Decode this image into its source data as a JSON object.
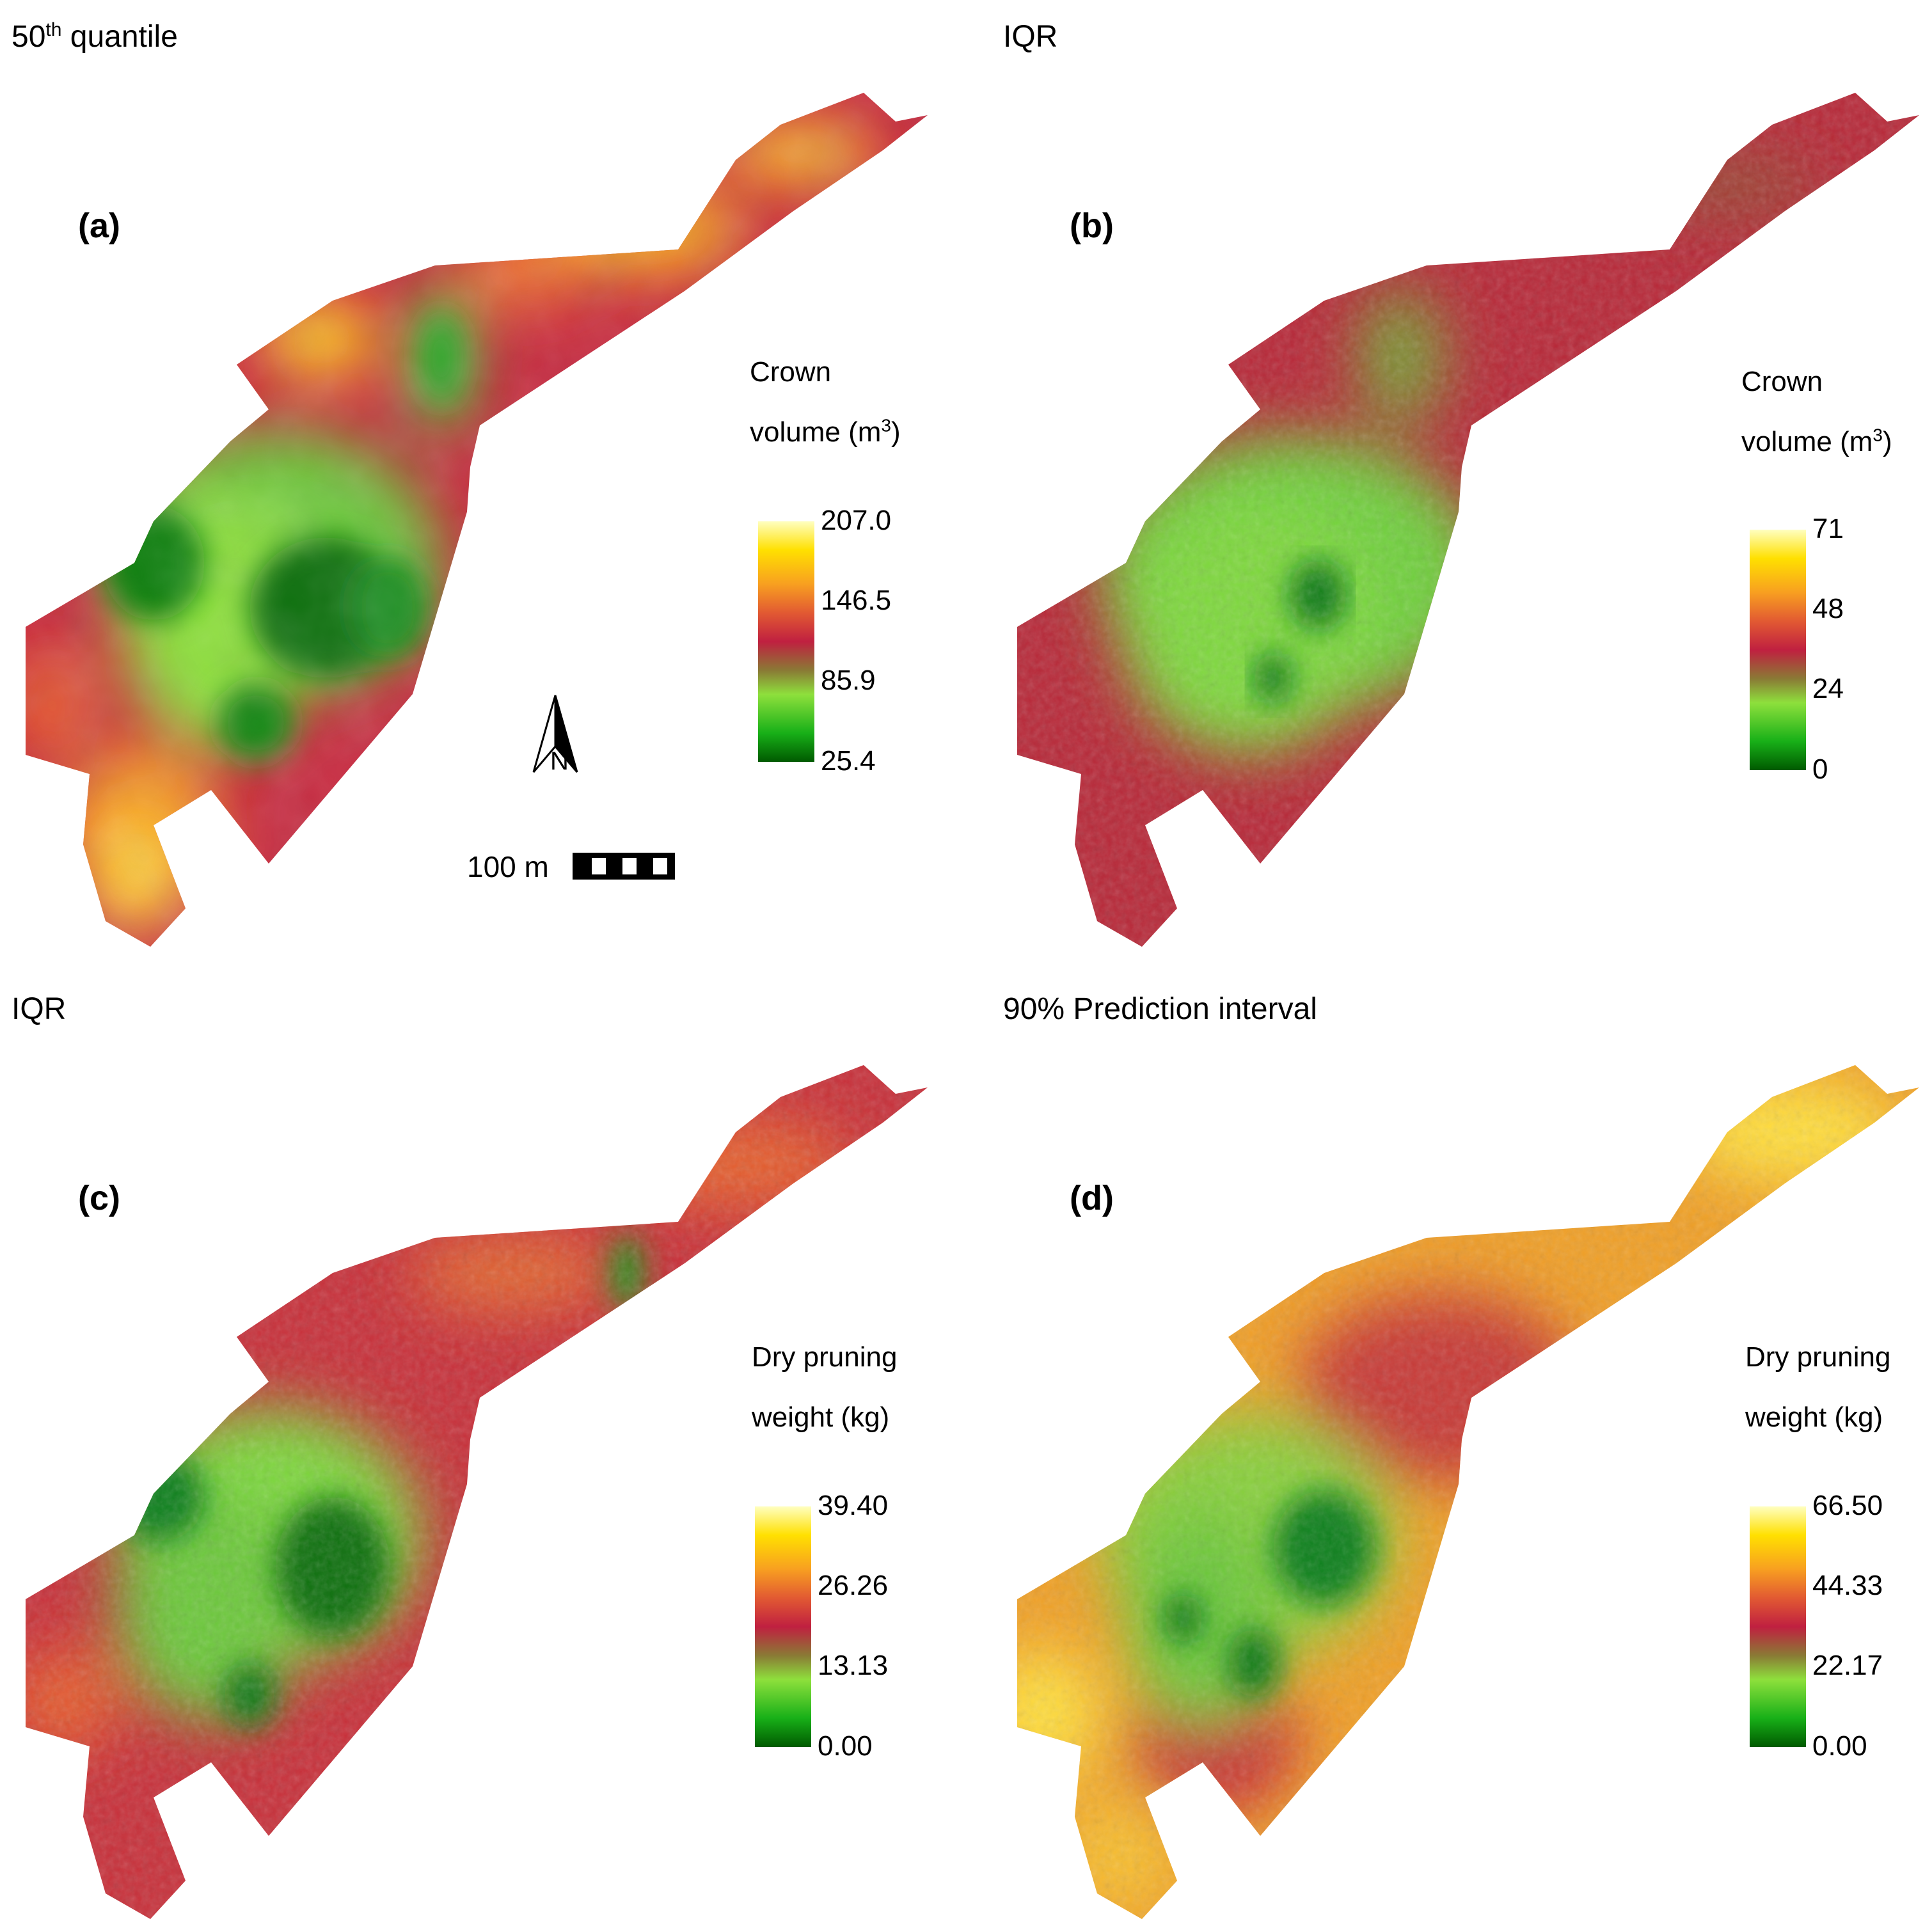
{
  "palette": {
    "stops": [
      "#006400",
      "#2eb82e",
      "#8ee03c",
      "#8a7a35",
      "#b0203a",
      "#d94040",
      "#ee7028",
      "#f8b020",
      "#ffe000",
      "#ffffb0"
    ],
    "outline": "#000000"
  },
  "panels": [
    {
      "id": "a",
      "heading": {
        "main": "50",
        "sup": "th",
        "rest": " quantile"
      },
      "letter": "(a)",
      "legend": {
        "title_line1": "Crown",
        "title_line2": "volume (m",
        "title_sup": "3",
        "title_close": ")",
        "ticks": [
          "207.0",
          "146.5",
          "85.9",
          "25.4"
        ]
      },
      "map": {
        "variable": "crown volume",
        "pattern": "smooth",
        "green_extent": "center"
      }
    },
    {
      "id": "b",
      "heading": {
        "main": "IQR",
        "sup": "",
        "rest": ""
      },
      "letter": "(b)",
      "legend": {
        "title_line1": "Crown",
        "title_line2": "volume (m",
        "title_sup": "3",
        "title_close": ")",
        "ticks": [
          "71",
          "48",
          "24",
          "0"
        ]
      },
      "map": {
        "variable": "crown volume IQR",
        "pattern": "speckled",
        "green_extent": "center"
      }
    },
    {
      "id": "c",
      "heading": {
        "main": "IQR",
        "sup": "",
        "rest": ""
      },
      "letter": "(c)",
      "legend": {
        "title_line1": "Dry pruning",
        "title_line2": "weight (kg)",
        "title_sup": "",
        "title_close": "",
        "ticks": [
          "39.40",
          "26.26",
          "13.13",
          "0.00"
        ]
      },
      "map": {
        "variable": "dry pruning weight IQR",
        "pattern": "speckled",
        "green_extent": "center-west"
      }
    },
    {
      "id": "d",
      "heading": {
        "main": "90% Prediction interval",
        "sup": "",
        "rest": ""
      },
      "letter": "(d)",
      "legend": {
        "title_line1": "Dry pruning",
        "title_line2": "weight (kg)",
        "title_sup": "",
        "title_close": "",
        "ticks": [
          "66.50",
          "44.33",
          "22.17",
          "0.00"
        ]
      },
      "map": {
        "variable": "dry pruning weight 90% PI",
        "pattern": "speckled",
        "green_extent": "center"
      }
    }
  ],
  "north_arrow": {
    "label": "N"
  },
  "scale": {
    "label": "100 m"
  }
}
